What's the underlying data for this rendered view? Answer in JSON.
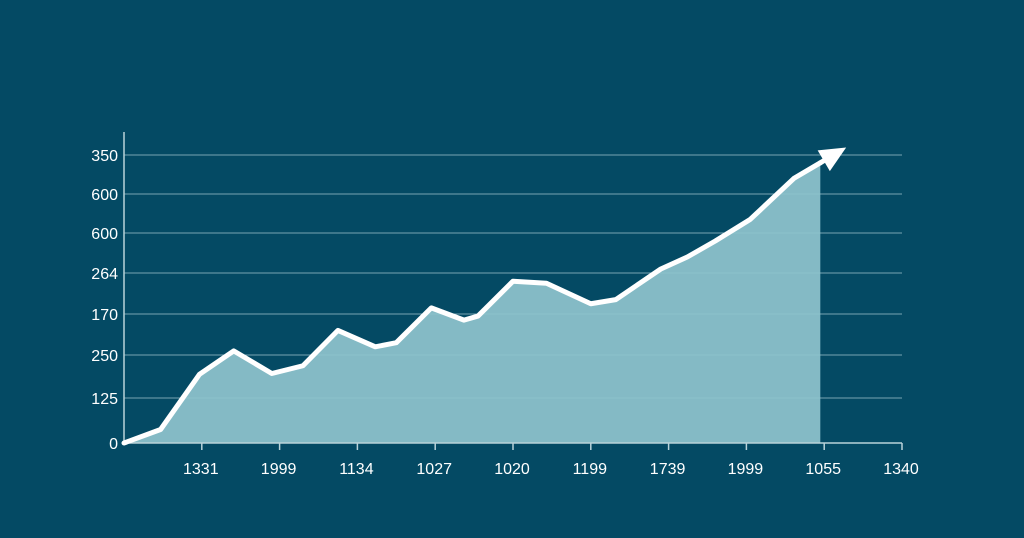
{
  "colors": {
    "background": "#044a64",
    "area_fill": "#8fc3cd",
    "line": "#ffffff",
    "grid": "#9fc3cc",
    "axis": "#b9d3da"
  },
  "chart_data": {
    "type": "area",
    "title": "",
    "xlabel": "",
    "ylabel": "",
    "grid": true,
    "trend_arrow": true,
    "y_ticks": [
      {
        "label": "0",
        "level": 0
      },
      {
        "label": "125",
        "level": 1
      },
      {
        "label": "250",
        "level": 2
      },
      {
        "label": "170",
        "level": 3
      },
      {
        "label": "264",
        "level": 4
      },
      {
        "label": "600",
        "level": 5
      },
      {
        "label": "600",
        "level": 6
      },
      {
        "label": "350",
        "level": 7
      }
    ],
    "x_ticks": [
      "1331",
      "1999",
      "1134",
      "1027",
      "1020",
      "1199",
      "1739",
      "1999",
      "1055",
      "1340"
    ],
    "x_tick_positions": [
      0.5,
      1.5,
      2.5,
      3.5,
      4.5,
      5.5,
      6.5,
      7.5,
      8.5,
      9.5
    ],
    "xlim": [
      -0.5,
      9.5
    ],
    "ylim": [
      0,
      7.3
    ],
    "series": [
      {
        "points": [
          [
            -0.5,
            0.0
          ],
          [
            -0.03,
            0.3
          ],
          [
            0.47,
            1.55
          ],
          [
            0.91,
            2.1
          ],
          [
            1.4,
            1.57
          ],
          [
            1.8,
            1.75
          ],
          [
            2.25,
            2.6
          ],
          [
            2.73,
            2.2
          ],
          [
            3.0,
            2.3
          ],
          [
            3.45,
            3.15
          ],
          [
            3.87,
            2.85
          ],
          [
            4.05,
            2.95
          ],
          [
            4.5,
            3.8
          ],
          [
            4.93,
            3.75
          ],
          [
            5.5,
            3.25
          ],
          [
            5.82,
            3.35
          ],
          [
            6.4,
            4.1
          ],
          [
            6.74,
            4.4
          ],
          [
            7.1,
            4.8
          ],
          [
            7.55,
            5.35
          ],
          [
            8.11,
            6.4
          ],
          [
            8.45,
            6.8
          ]
        ]
      }
    ]
  }
}
